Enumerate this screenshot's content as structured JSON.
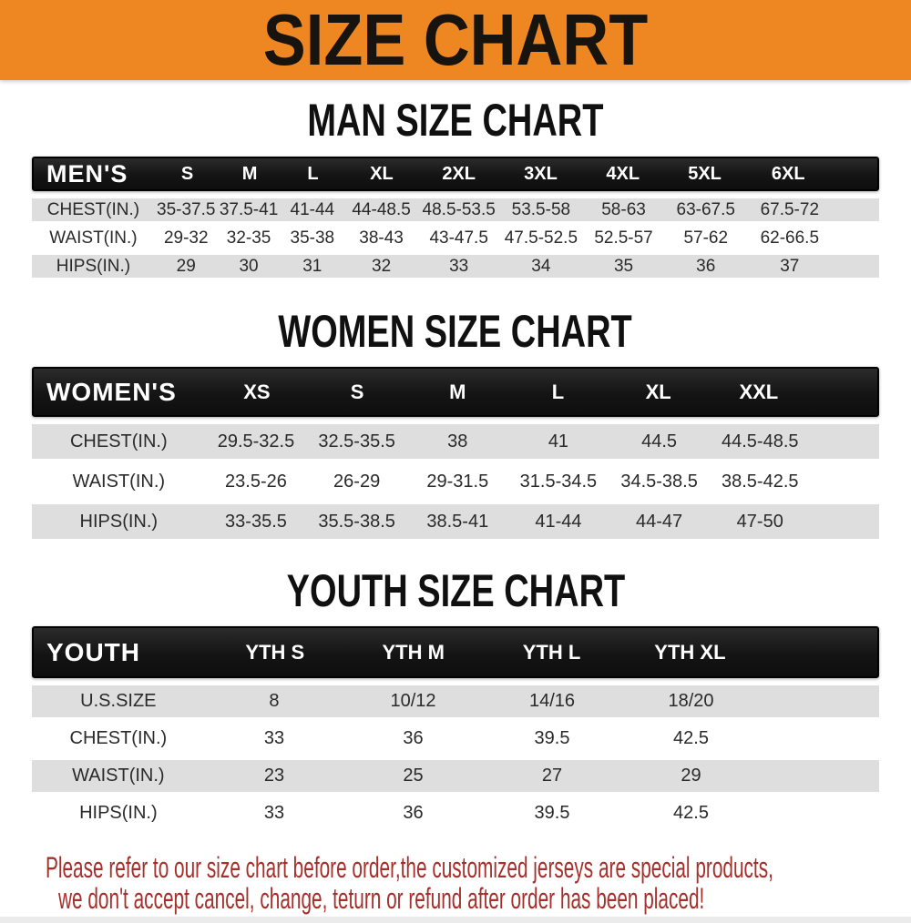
{
  "banner": {
    "title": "SIZE CHART"
  },
  "colors": {
    "banner_bg": "#ee8622",
    "bar_bg": "#161616",
    "row_stripe": "#dedede",
    "footer_text": "#a5302b"
  },
  "sections": [
    {
      "heading": "MAN SIZE CHART",
      "table": {
        "label": "MEN'S",
        "columns": [
          "S",
          "M",
          "L",
          "XL",
          "2XL",
          "3XL",
          "4XL",
          "5XL",
          "6XL"
        ],
        "rows": [
          {
            "label": "CHEST(IN.)",
            "values": [
              "35-37.5",
              "37.5-41",
              "41-44",
              "44-48.5",
              "48.5-53.5",
              "53.5-58",
              "58-63",
              "63-67.5",
              "67.5-72"
            ]
          },
          {
            "label": "WAIST(IN.)",
            "values": [
              "29-32",
              "32-35",
              "35-38",
              "38-43",
              "43-47.5",
              "47.5-52.5",
              "52.5-57",
              "57-62",
              "62-66.5"
            ]
          },
          {
            "label": "HIPS(IN.)",
            "values": [
              "29",
              "30",
              "31",
              "32",
              "33",
              "34",
              "35",
              "36",
              "37"
            ]
          }
        ]
      }
    },
    {
      "heading": "WOMEN SIZE CHART",
      "table": {
        "label": "WOMEN'S",
        "columns": [
          "XS",
          "S",
          "M",
          "L",
          "XL",
          "XXL"
        ],
        "rows": [
          {
            "label": "CHEST(IN.)",
            "values": [
              "29.5-32.5",
              "32.5-35.5",
              "38",
              "41",
              "44.5",
              "44.5-48.5"
            ]
          },
          {
            "label": "WAIST(IN.)",
            "values": [
              "23.5-26",
              "26-29",
              "29-31.5",
              "31.5-34.5",
              "34.5-38.5",
              "38.5-42.5"
            ]
          },
          {
            "label": "HIPS(IN.)",
            "values": [
              "33-35.5",
              "35.5-38.5",
              "38.5-41",
              "41-44",
              "44-47",
              "47-50"
            ]
          }
        ]
      }
    },
    {
      "heading": "YOUTH SIZE CHART",
      "table": {
        "label": "YOUTH",
        "columns": [
          "YTH S",
          "YTH M",
          "YTH L",
          "YTH XL"
        ],
        "rows": [
          {
            "label": "U.S.SIZE",
            "values": [
              "8",
              "10/12",
              "14/16",
              "18/20"
            ]
          },
          {
            "label": "CHEST(IN.)",
            "values": [
              "33",
              "36",
              "39.5",
              "42.5"
            ]
          },
          {
            "label": "WAIST(IN.)",
            "values": [
              "23",
              "25",
              "27",
              "29"
            ]
          },
          {
            "label": "HIPS(IN.)",
            "values": [
              "33",
              "36",
              "39.5",
              "42.5"
            ]
          }
        ]
      }
    }
  ],
  "footer": {
    "lines": [
      "Please refer to our size chart before order,the customized jerseys are special products,",
      "we don't accept cancel, change, teturn or refund after order has been placed!"
    ]
  }
}
